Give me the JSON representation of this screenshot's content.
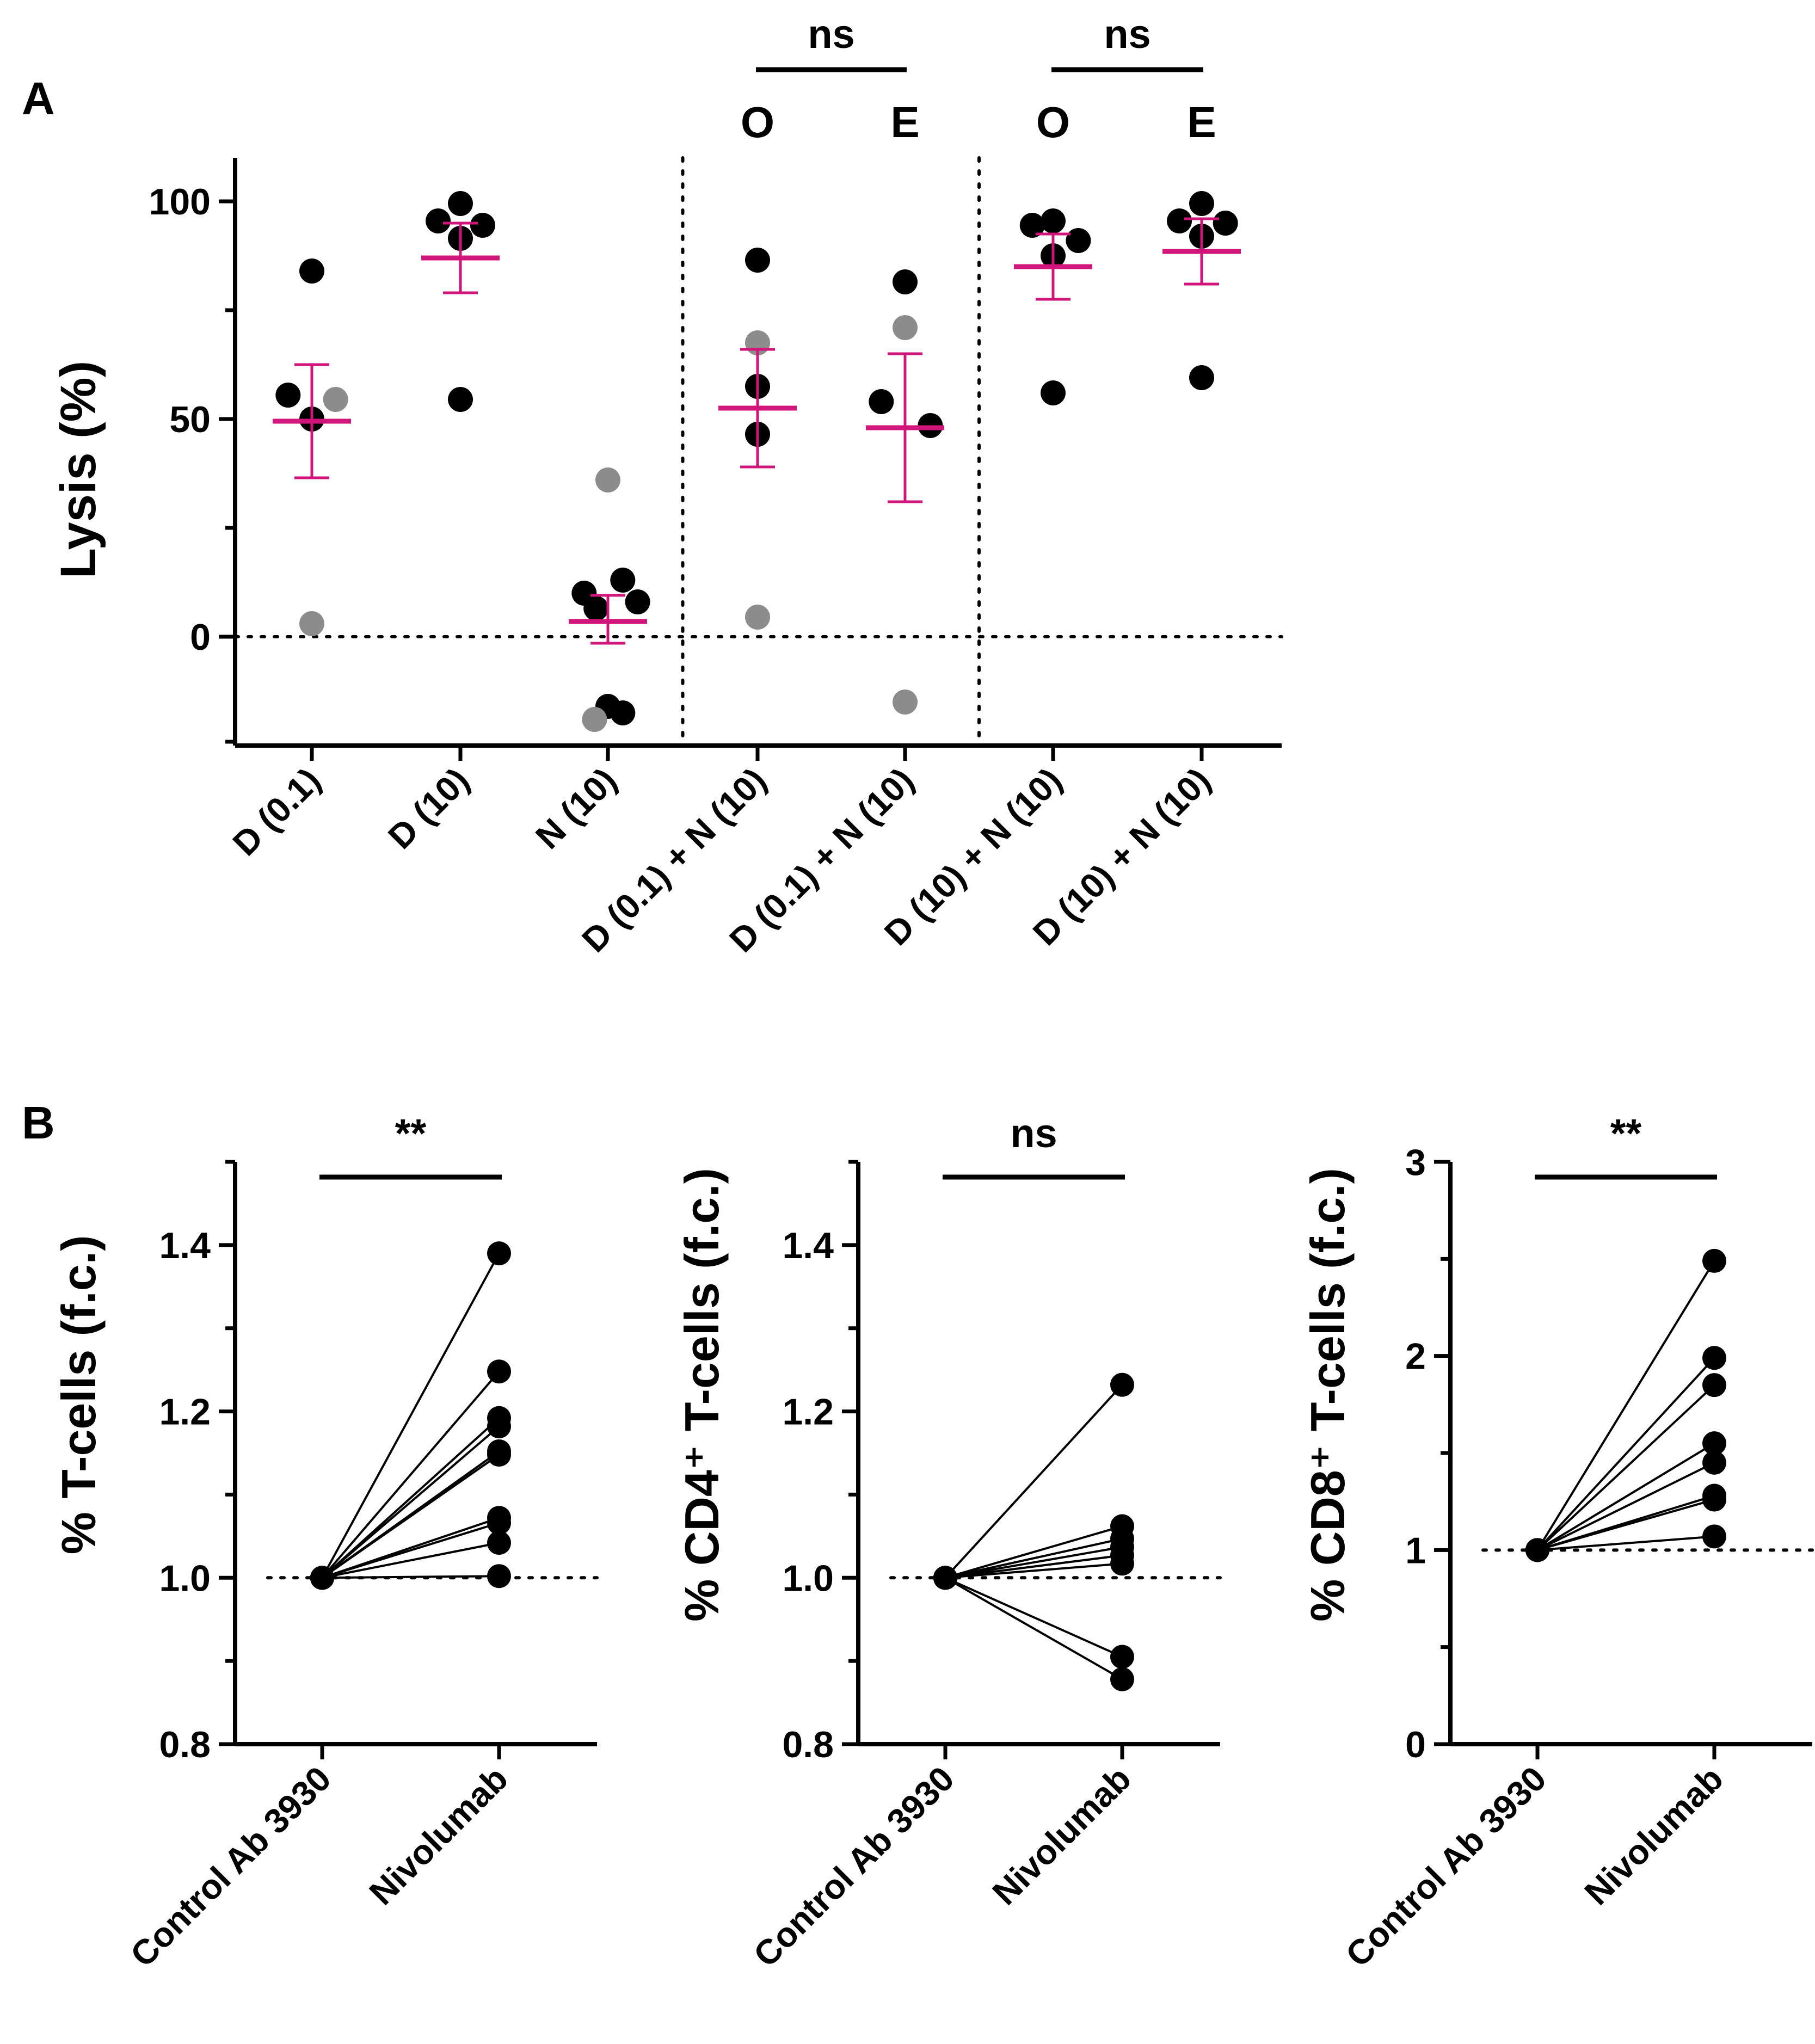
{
  "colors": {
    "black": "#000000",
    "gray": "#8c8c8c",
    "mean": "#d1147a"
  },
  "chart_data": [
    {
      "id": "panel-A",
      "panel_label": "A",
      "type": "scatter",
      "ylabel": "Lysis (%)",
      "ylim": [
        -25,
        110
      ],
      "yticks": [
        0,
        50,
        100
      ],
      "yminor": [
        25,
        75
      ],
      "categories": [
        "D (0.1)",
        "D (10)",
        "N (10)",
        "D (0.1) + N (10)",
        "D (0.1) + N (10)",
        "D (10) + N (10)",
        "D (10) + N (10)"
      ],
      "group_labels": [
        "",
        "",
        "",
        "O",
        "E",
        "O",
        "E"
      ],
      "separators_after": [
        3,
        5
      ],
      "reference_line": 0,
      "significance": [
        {
          "from": 3,
          "to": 4,
          "label": "ns"
        },
        {
          "from": 5,
          "to": 6,
          "label": "ns"
        }
      ],
      "groups": [
        {
          "mean": 49.5,
          "err_low": 36.5,
          "err_high": 62.5,
          "points": [
            {
              "x": -0.16,
              "y": 55.5,
              "c": "black"
            },
            {
              "x": 0.0,
              "y": 50,
              "c": "black"
            },
            {
              "x": 0.16,
              "y": 54.5,
              "c": "gray"
            },
            {
              "x": 0.0,
              "y": 3,
              "c": "gray"
            },
            {
              "x": 0.0,
              "y": 84,
              "c": "black"
            }
          ]
        },
        {
          "mean": 87,
          "err_low": 79,
          "err_high": 95,
          "points": [
            {
              "x": -0.15,
              "y": 95.5,
              "c": "black"
            },
            {
              "x": 0.0,
              "y": 99.5,
              "c": "black"
            },
            {
              "x": 0.15,
              "y": 94.5,
              "c": "black"
            },
            {
              "x": 0.0,
              "y": 91.5,
              "c": "black"
            },
            {
              "x": 0.0,
              "y": 54.5,
              "c": "black"
            }
          ]
        },
        {
          "mean": 3.5,
          "err_low": -1.5,
          "err_high": 9.5,
          "points": [
            {
              "x": 0.0,
              "y": 36,
              "c": "gray"
            },
            {
              "x": -0.16,
              "y": 10,
              "c": "black"
            },
            {
              "x": 0.1,
              "y": 13,
              "c": "black"
            },
            {
              "x": 0.2,
              "y": 8,
              "c": "black"
            },
            {
              "x": -0.08,
              "y": 6.5,
              "c": "black"
            },
            {
              "x": 0.0,
              "y": -16,
              "c": "black"
            },
            {
              "x": 0.1,
              "y": -17.5,
              "c": "black"
            },
            {
              "x": -0.09,
              "y": -19,
              "c": "gray"
            }
          ]
        },
        {
          "mean": 52.5,
          "err_low": 39,
          "err_high": 66,
          "points": [
            {
              "x": 0.0,
              "y": 86.5,
              "c": "black"
            },
            {
              "x": 0.0,
              "y": 67.5,
              "c": "gray"
            },
            {
              "x": 0.0,
              "y": 57.5,
              "c": "black"
            },
            {
              "x": 0.0,
              "y": 46.5,
              "c": "black"
            },
            {
              "x": 0.0,
              "y": 4.5,
              "c": "gray"
            }
          ]
        },
        {
          "mean": 48,
          "err_low": 31,
          "err_high": 65,
          "points": [
            {
              "x": 0.0,
              "y": 81.5,
              "c": "black"
            },
            {
              "x": 0.0,
              "y": 71,
              "c": "gray"
            },
            {
              "x": -0.16,
              "y": 54,
              "c": "black"
            },
            {
              "x": 0.17,
              "y": 48.5,
              "c": "black"
            },
            {
              "x": 0.0,
              "y": -15,
              "c": "gray"
            }
          ]
        },
        {
          "mean": 85,
          "err_low": 77.5,
          "err_high": 92.5,
          "points": [
            {
              "x": -0.14,
              "y": 94.5,
              "c": "black"
            },
            {
              "x": 0.0,
              "y": 95.5,
              "c": "black"
            },
            {
              "x": 0.17,
              "y": 91,
              "c": "black"
            },
            {
              "x": 0.0,
              "y": 87.5,
              "c": "black"
            },
            {
              "x": 0.0,
              "y": 56,
              "c": "black"
            }
          ]
        },
        {
          "mean": 88.5,
          "err_low": 81,
          "err_high": 96,
          "points": [
            {
              "x": -0.15,
              "y": 95.5,
              "c": "black"
            },
            {
              "x": 0.0,
              "y": 99.5,
              "c": "black"
            },
            {
              "x": 0.16,
              "y": 95,
              "c": "black"
            },
            {
              "x": 0.0,
              "y": 92,
              "c": "black"
            },
            {
              "x": 0.0,
              "y": 59.5,
              "c": "black"
            }
          ]
        }
      ]
    },
    {
      "id": "panel-B1",
      "panel_label": "B",
      "type": "line",
      "ylabel": "% T-cells (f.c.)",
      "ylim": [
        0.8,
        1.5
      ],
      "yticks": [
        0.8,
        1.0,
        1.2,
        1.4
      ],
      "ytick_labels": [
        "0.8",
        "1.0",
        "1.2",
        "1.4"
      ],
      "yminor": [
        0.9,
        1.1,
        1.3,
        1.5
      ],
      "categories": [
        "Control Ab 3930",
        "Nivolumab"
      ],
      "reference_line": 1.0,
      "significance": [
        {
          "from": 0,
          "to": 1,
          "label": "**"
        }
      ],
      "pairs": [
        [
          1.0,
          1.39
        ],
        [
          1.0,
          1.248
        ],
        [
          1.0,
          1.192
        ],
        [
          1.0,
          1.182
        ],
        [
          1.0,
          1.152
        ],
        [
          1.0,
          1.148
        ],
        [
          1.0,
          1.072
        ],
        [
          1.0,
          1.066
        ],
        [
          1.0,
          1.042
        ],
        [
          1.0,
          1.002
        ]
      ]
    },
    {
      "id": "panel-B2",
      "type": "line",
      "ylabel": "% CD4⁺ T-cells (f.c.)",
      "ylim": [
        0.8,
        1.5
      ],
      "yticks": [
        0.8,
        1.0,
        1.2,
        1.4
      ],
      "ytick_labels": [
        "0.8",
        "1.0",
        "1.2",
        "1.4"
      ],
      "yminor": [
        0.9,
        1.1,
        1.3,
        1.5
      ],
      "categories": [
        "Control Ab 3930",
        "Nivolumab"
      ],
      "reference_line": 1.0,
      "significance": [
        {
          "from": 0,
          "to": 1,
          "label": "ns"
        }
      ],
      "pairs": [
        [
          1.0,
          1.232
        ],
        [
          1.0,
          1.062
        ],
        [
          1.0,
          1.047
        ],
        [
          1.0,
          1.037
        ],
        [
          1.0,
          1.027
        ],
        [
          1.0,
          1.017
        ],
        [
          1.0,
          0.905
        ],
        [
          1.0,
          0.878
        ]
      ]
    },
    {
      "id": "panel-B3",
      "type": "line",
      "ylabel": "% CD8⁺ T-cells (f.c.)",
      "ylim": [
        0,
        3
      ],
      "yticks": [
        0,
        1,
        2,
        3
      ],
      "ytick_labels": [
        "0",
        "1",
        "2",
        "3"
      ],
      "yminor": [
        0.5,
        1.5,
        2.5
      ],
      "categories": [
        "Control Ab 3930",
        "Nivolumab"
      ],
      "reference_line": 1.0,
      "significance": [
        {
          "from": 0,
          "to": 1,
          "label": "**"
        }
      ],
      "pairs": [
        [
          1.0,
          2.49
        ],
        [
          1.0,
          1.99
        ],
        [
          1.0,
          1.85
        ],
        [
          1.0,
          1.55
        ],
        [
          1.0,
          1.45
        ],
        [
          1.0,
          1.28
        ],
        [
          1.0,
          1.26
        ],
        [
          1.0,
          1.07
        ]
      ]
    }
  ]
}
